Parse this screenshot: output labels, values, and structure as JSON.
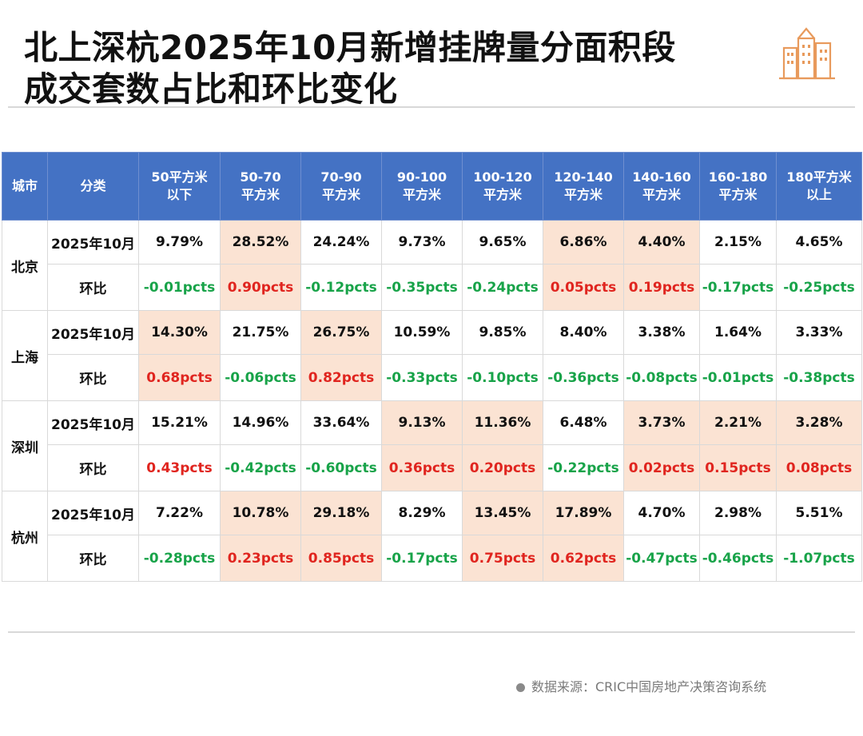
{
  "title": {
    "line1": "北上深杭2025年10月新增挂牌量分面积段",
    "line2": "成交套数占比和环比变化"
  },
  "logo_icon": "city-buildings-icon",
  "colors": {
    "header": "#4472c4",
    "highlight": "#fbe3d3",
    "positive": "#e0251f",
    "negative": "#18a349"
  },
  "table": {
    "headers": {
      "city": "城市",
      "category": "分类",
      "bands": [
        {
          "l1": "50平方米",
          "l2": "以下"
        },
        {
          "l1": "50-70",
          "l2": "平方米"
        },
        {
          "l1": "70-90",
          "l2": "平方米"
        },
        {
          "l1": "90-100",
          "l2": "平方米"
        },
        {
          "l1": "100-120",
          "l2": "平方米"
        },
        {
          "l1": "120-140",
          "l2": "平方米"
        },
        {
          "l1": "140-160",
          "l2": "平方米"
        },
        {
          "l1": "160-180",
          "l2": "平方米"
        },
        {
          "l1": "180平方米",
          "l2": "以上"
        }
      ]
    },
    "rows": [
      {
        "city": "北京",
        "share_label": "2025年10月",
        "change_label": "环比",
        "shares": [
          "9.79%",
          "28.52%",
          "24.24%",
          "9.73%",
          "9.65%",
          "6.86%",
          "4.40%",
          "2.15%",
          "4.65%"
        ],
        "changes": [
          "-0.01pcts",
          "0.90pcts",
          "-0.12pcts",
          "-0.35pcts",
          "-0.24pcts",
          "0.05pcts",
          "0.19pcts",
          "-0.17pcts",
          "-0.25pcts"
        ]
      },
      {
        "city": "上海",
        "share_label": "2025年10月",
        "change_label": "环比",
        "shares": [
          "14.30%",
          "21.75%",
          "26.75%",
          "10.59%",
          "9.85%",
          "8.40%",
          "3.38%",
          "1.64%",
          "3.33%"
        ],
        "changes": [
          "0.68pcts",
          "-0.06pcts",
          "0.82pcts",
          "-0.33pcts",
          "-0.10pcts",
          "-0.36pcts",
          "-0.08pcts",
          "-0.01pcts",
          "-0.38pcts"
        ]
      },
      {
        "city": "深圳",
        "share_label": "2025年10月",
        "change_label": "环比",
        "shares": [
          "15.21%",
          "14.96%",
          "33.64%",
          "9.13%",
          "11.36%",
          "6.48%",
          "3.73%",
          "2.21%",
          "3.28%"
        ],
        "changes": [
          "0.43pcts",
          "-0.42pcts",
          "-0.60pcts",
          "0.36pcts",
          "0.20pcts",
          "-0.22pcts",
          "0.02pcts",
          "0.15pcts",
          "0.08pcts"
        ]
      },
      {
        "city": "杭州",
        "share_label": "2025年10月",
        "change_label": "环比",
        "shares": [
          "7.22%",
          "10.78%",
          "29.18%",
          "8.29%",
          "13.45%",
          "17.89%",
          "4.70%",
          "2.98%",
          "5.51%"
        ],
        "changes": [
          "-0.28pcts",
          "0.23pcts",
          "0.85pcts",
          "-0.17pcts",
          "0.75pcts",
          "0.62pcts",
          "-0.47pcts",
          "-0.46pcts",
          "-1.07pcts"
        ]
      }
    ]
  },
  "source": "数据来源：CRIC中国房地产决策咨询系统"
}
